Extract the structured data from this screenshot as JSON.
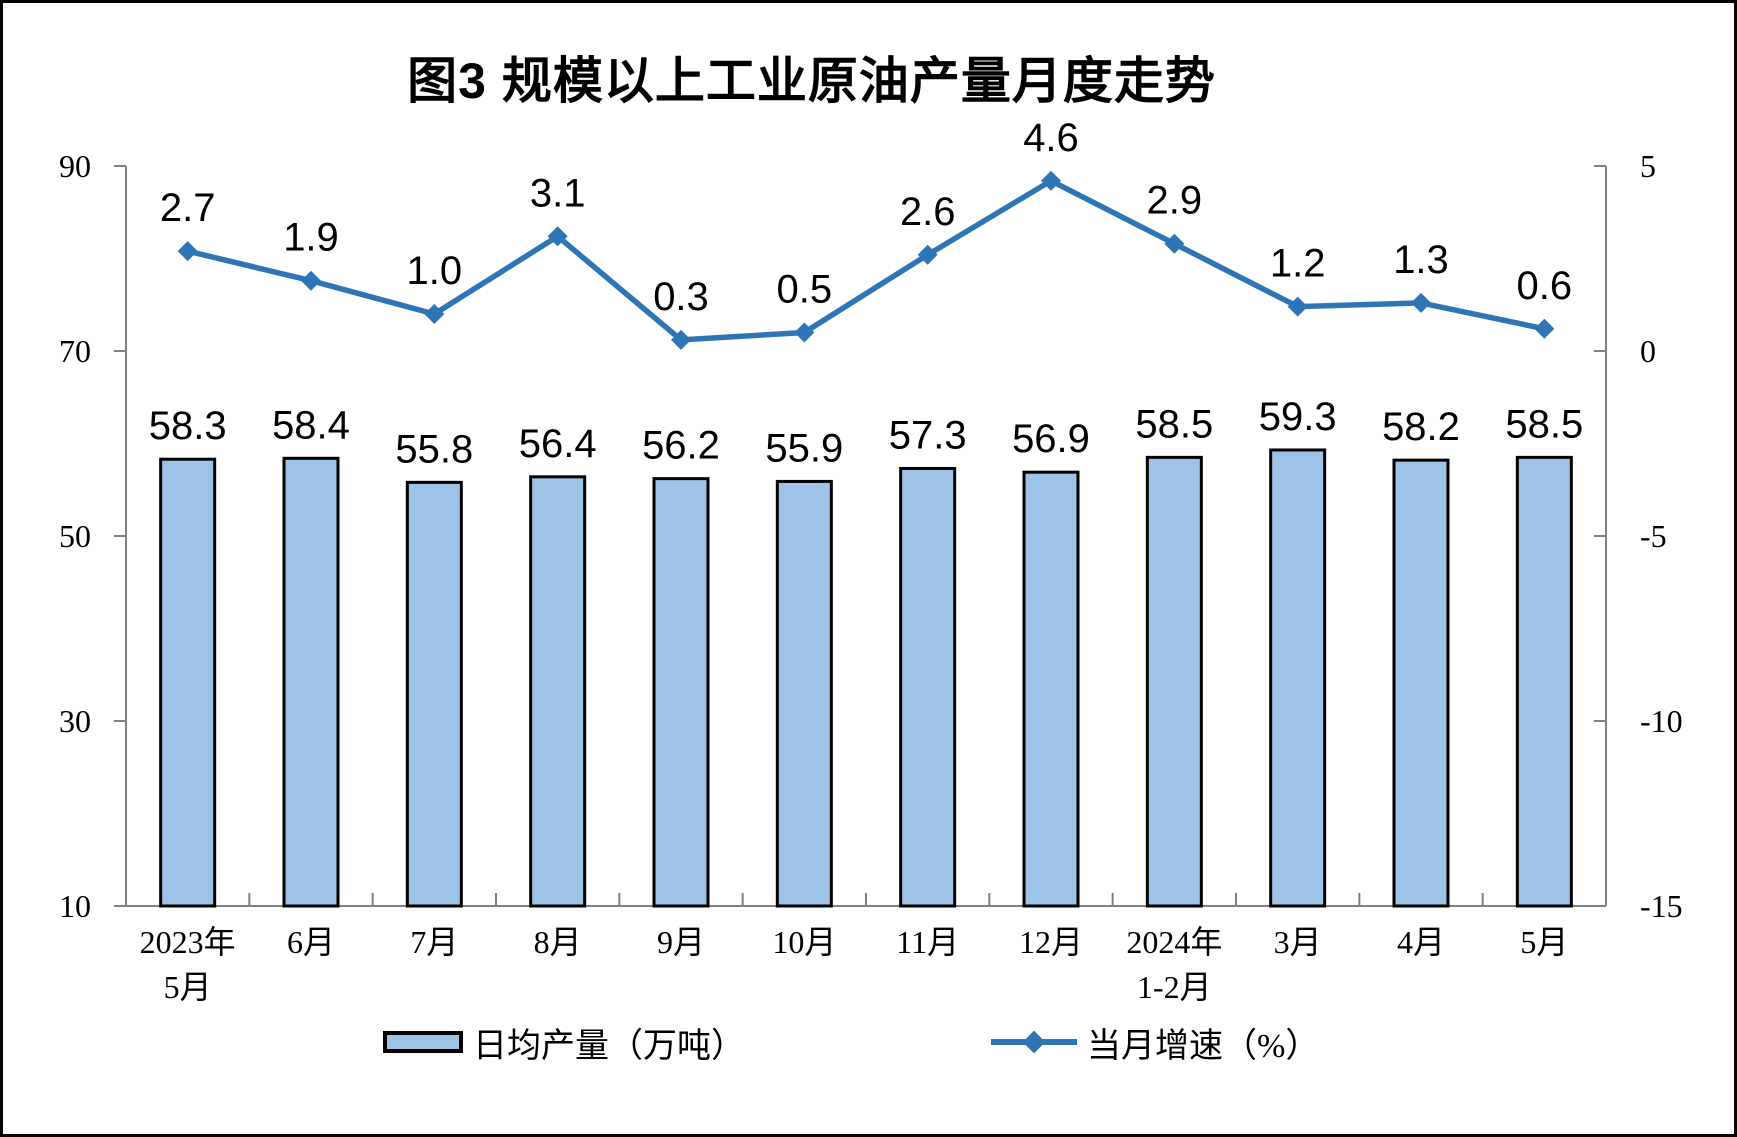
{
  "title": "图3 规模以上工业原油产量月度走势",
  "legend": {
    "bar_label": "日均产量（万吨）",
    "line_label": "当月增速（%）"
  },
  "chart_data": {
    "type": "combo",
    "title": "图3 规模以上工业原油产量月度走势",
    "categories": [
      "2023年\n5月",
      "6月",
      "7月",
      "8月",
      "9月",
      "10月",
      "11月",
      "12月",
      "2024年\n1-2月",
      "3月",
      "4月",
      "5月"
    ],
    "series": [
      {
        "name": "日均产量（万吨）",
        "type": "bar",
        "axis": "left",
        "values": [
          58.3,
          58.4,
          55.8,
          56.4,
          56.2,
          55.9,
          57.3,
          56.9,
          58.5,
          59.3,
          58.2,
          58.5
        ]
      },
      {
        "name": "当月增速（%）",
        "type": "line",
        "axis": "right",
        "values": [
          2.7,
          1.9,
          1.0,
          3.1,
          0.3,
          0.5,
          2.6,
          4.6,
          2.9,
          1.2,
          1.3,
          0.6
        ]
      }
    ],
    "left_axis": {
      "min": 10,
      "max": 90,
      "ticks": [
        90,
        70,
        50,
        30,
        10
      ]
    },
    "right_axis": {
      "min": -15,
      "max": 5,
      "ticks": [
        5,
        0,
        -5,
        -10,
        -15
      ]
    },
    "grid": false,
    "legend_position": "bottom"
  },
  "colors": {
    "bar_fill": "#9DC3E6",
    "bar_border": "#000000",
    "line": "#2E75B6",
    "axis": "#808080",
    "text": "#000000"
  }
}
